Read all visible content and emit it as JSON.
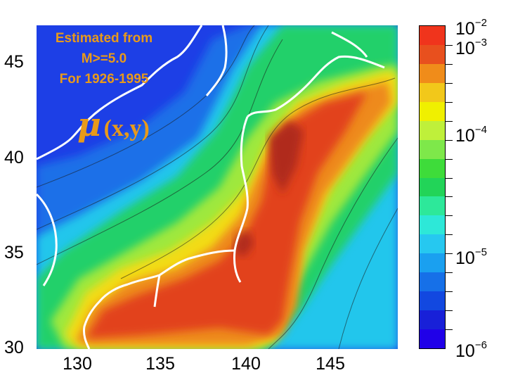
{
  "annotations": {
    "line1": "Estimated from",
    "line2": "M>=5.0",
    "line3": "For 1926-1995",
    "mu_symbol": "μ",
    "mu_text": "(x,y)"
  },
  "axes": {
    "lon_ticks": [
      "130",
      "135",
      "140",
      "145"
    ],
    "lat_ticks": [
      "45",
      "40",
      "35",
      "30"
    ]
  },
  "colorbar": {
    "colors": [
      "#f0341c",
      "#e8501e",
      "#f08c1a",
      "#f2c81a",
      "#f0f000",
      "#bff03a",
      "#7ee84a",
      "#3edc3a",
      "#22d458",
      "#2de89a",
      "#2de8d8",
      "#26c8f0",
      "#1aa0f0",
      "#1670e8",
      "#1248e0",
      "#1820d8",
      "#2000e8"
    ],
    "labels": [
      {
        "base": "10",
        "exp": "−2"
      },
      {
        "base": "10",
        "exp": "−3"
      },
      {
        "base": "10",
        "exp": "−4"
      },
      {
        "base": "10",
        "exp": "−5"
      },
      {
        "base": "10",
        "exp": "−6"
      }
    ]
  },
  "map_colors": {
    "deep": "#1d3fe6",
    "blue": "#1f6fe8",
    "cyan": "#23c6ec",
    "green": "#22d06a",
    "lime": "#9fe83c",
    "yellow": "#f2dc18",
    "orange": "#ee8a1c",
    "red": "#e2421c",
    "dark": "#b02a1a",
    "coast": "#ffffff"
  }
}
